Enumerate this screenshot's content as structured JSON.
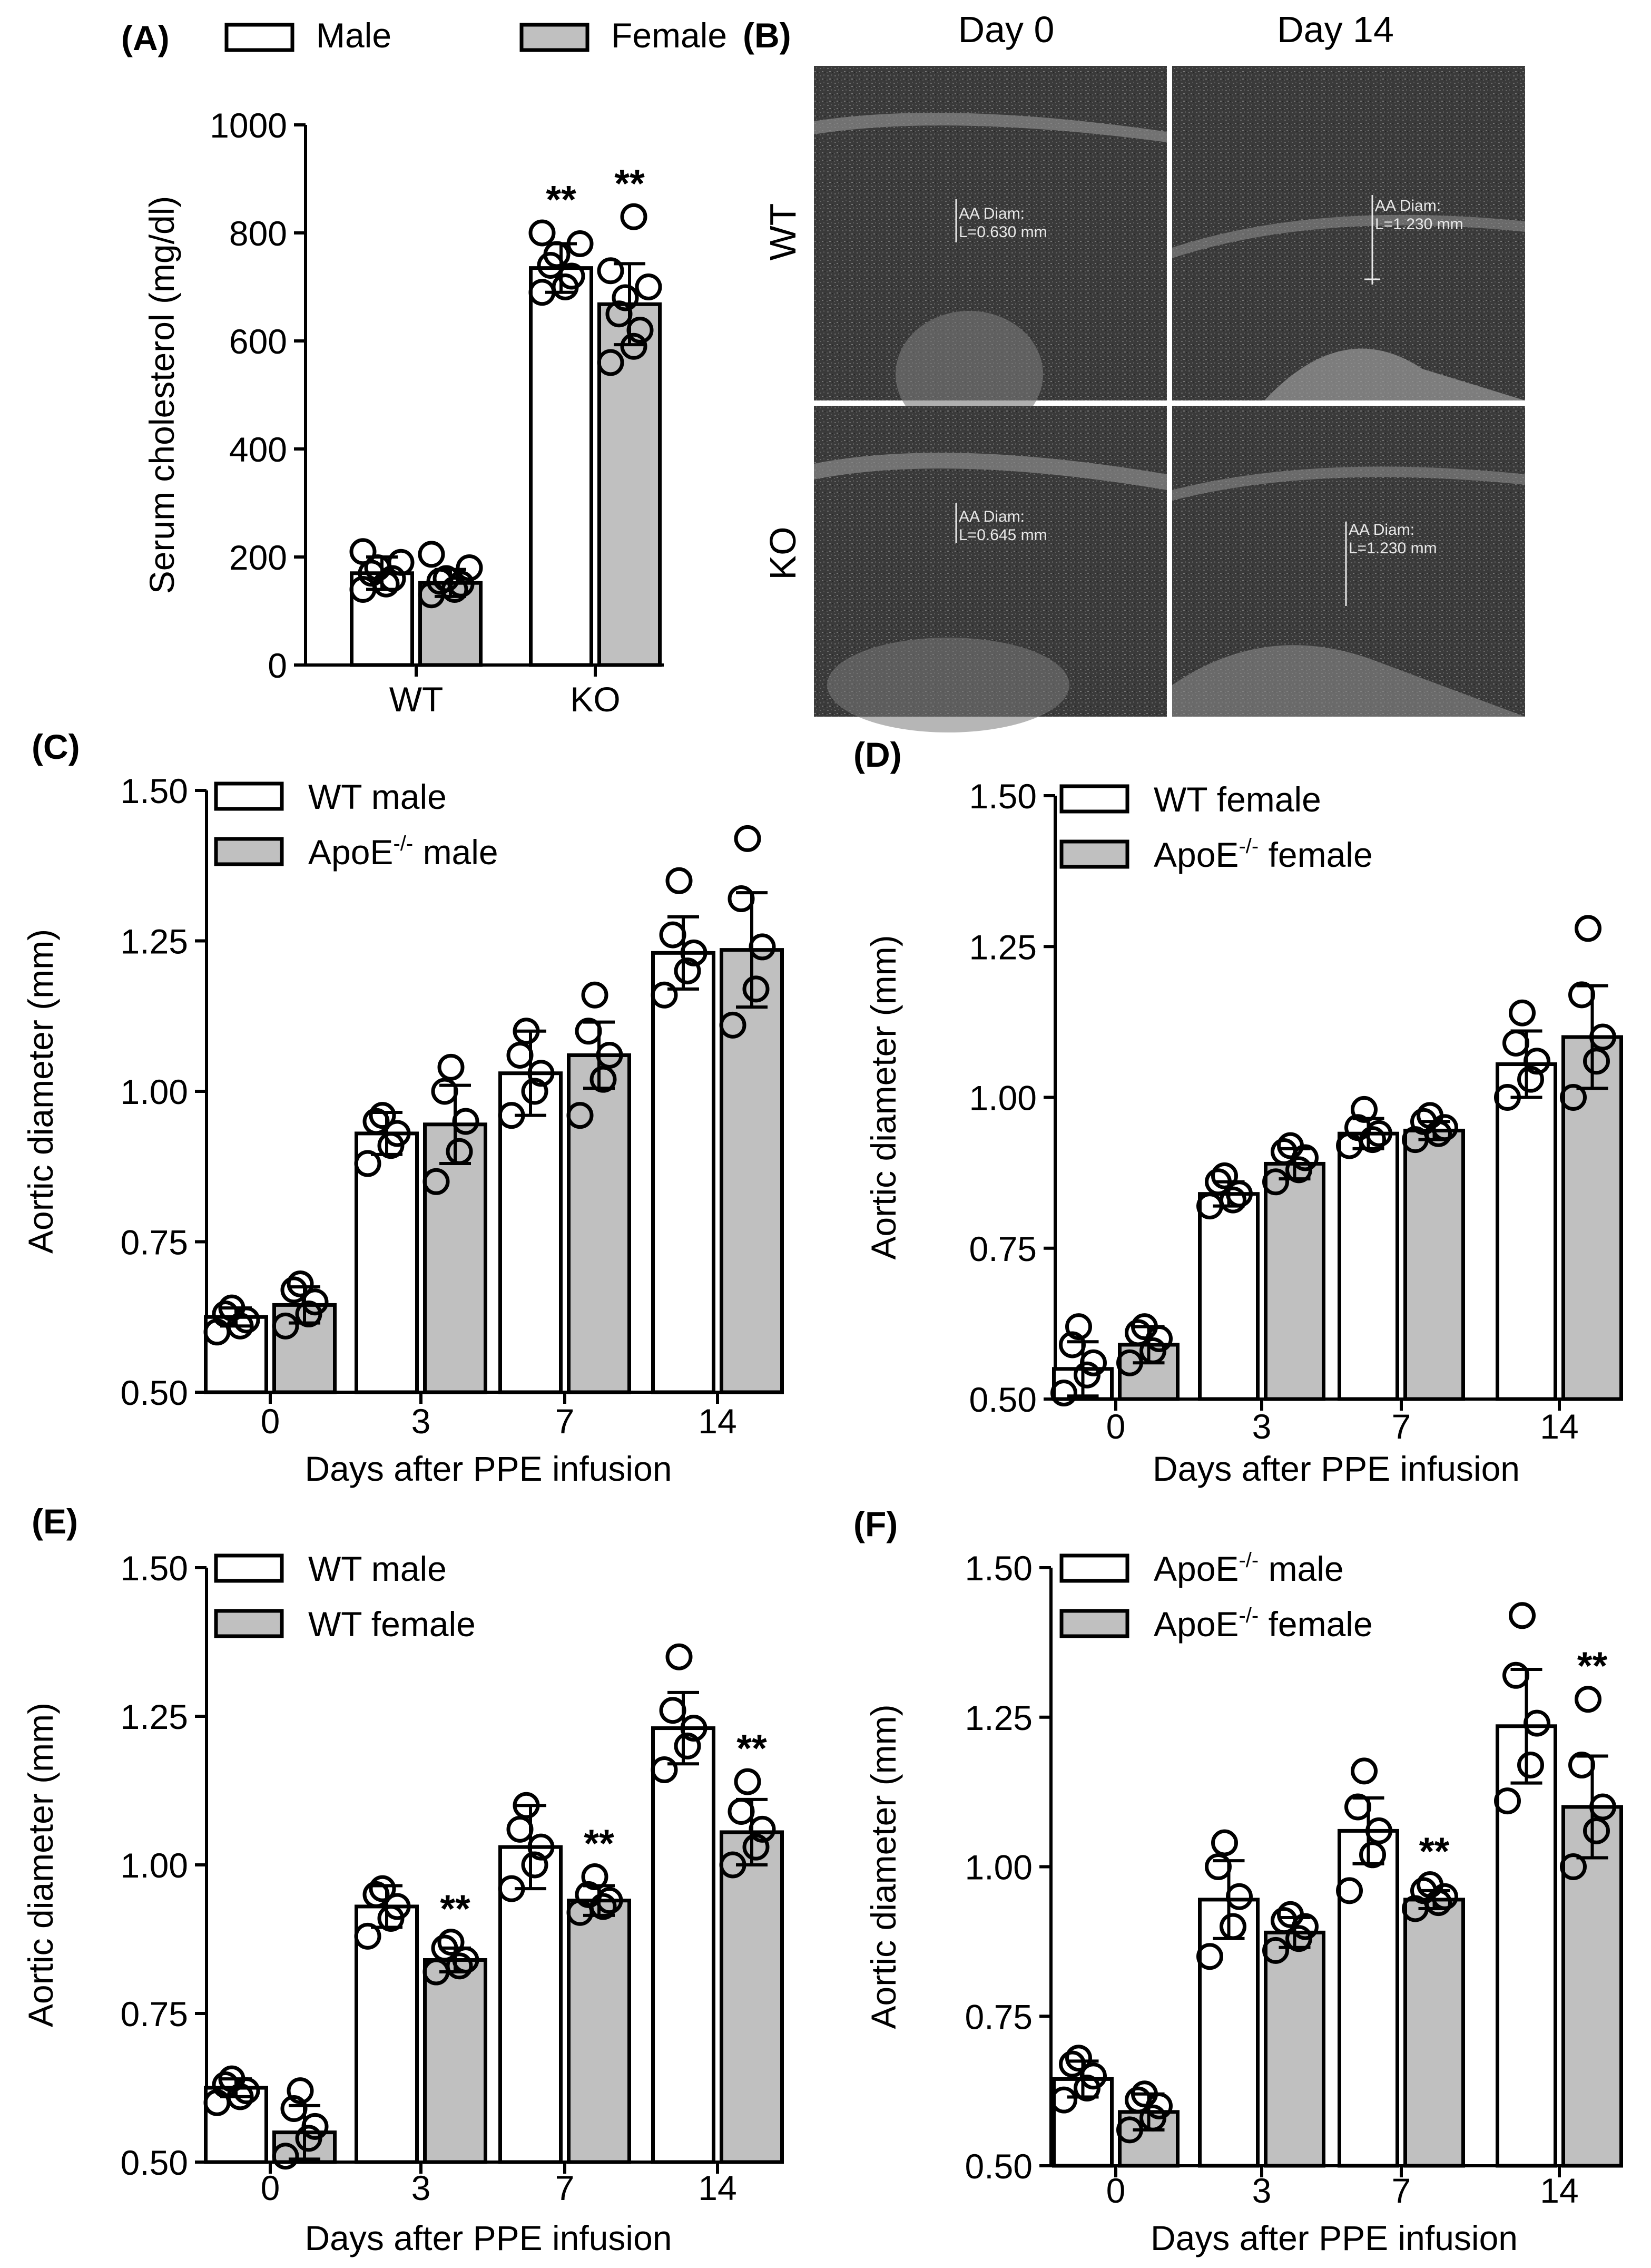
{
  "figure": {
    "colors": {
      "male_bar": "#ffffff",
      "female_bar": "#c0c0c0",
      "stroke": "#000000",
      "ultrasound_bg": "#3a3a3a",
      "ultrasound_text": "#e8e8e8"
    }
  },
  "ultrasound": {
    "panel_label": "(B)",
    "col_headers": [
      "Day 0",
      "Day 14"
    ],
    "row_labels": [
      "WT",
      "KO"
    ],
    "images": [
      {
        "name": "wt-day0",
        "measure_label": "AA Diam:",
        "measure_value": "L=0.630 mm"
      },
      {
        "name": "wt-day14",
        "measure_label": "AA Diam:",
        "measure_value": "L=1.230 mm"
      },
      {
        "name": "ko-day0",
        "measure_label": "AA Diam:",
        "measure_value": "L=0.645 mm"
      },
      {
        "name": "ko-day14",
        "measure_label": "AA Diam:",
        "measure_value": "L=1.230 mm"
      }
    ]
  },
  "chart_data": [
    {
      "id": "A",
      "panel_label": "(A)",
      "type": "bar",
      "ylabel": "Serum cholesterol (mg/dl)",
      "xlabel": "",
      "ylim": [
        0,
        1000
      ],
      "yticks": [
        "0",
        "200",
        "400",
        "600",
        "800",
        "1000"
      ],
      "categories": [
        "WT",
        "KO"
      ],
      "series": [
        {
          "name": "Male",
          "color": "#ffffff",
          "values": [
            170,
            735
          ],
          "errors": [
            30,
            45
          ],
          "points": [
            [
              140,
              150,
              160,
              170,
              180,
              190,
              210
            ],
            [
              690,
              700,
              720,
              740,
              760,
              780,
              800
            ]
          ],
          "sig": [
            "",
            "**"
          ]
        },
        {
          "name": "Female",
          "color": "#c0c0c0",
          "values": [
            152,
            668
          ],
          "errors": [
            25,
            75
          ],
          "points": [
            [
              130,
              140,
              150,
              155,
              160,
              180,
              205
            ],
            [
              560,
              590,
              620,
              650,
              680,
              700,
              730,
              830
            ]
          ],
          "sig": [
            "",
            "**"
          ]
        }
      ]
    },
    {
      "id": "C",
      "panel_label": "(C)",
      "type": "bar",
      "ylabel": "Aortic diameter (mm)",
      "xlabel": "Days after PPE infusion",
      "ylim": [
        0.5,
        1.5
      ],
      "yticks": [
        "0.50",
        "0.75",
        "1.00",
        "1.25",
        "1.50"
      ],
      "categories": [
        "0",
        "3",
        "7",
        "14"
      ],
      "series": [
        {
          "name": "WT male",
          "legend_name": "WT male",
          "color": "#ffffff",
          "values": [
            0.625,
            0.93,
            1.03,
            1.23
          ],
          "errors": [
            0.015,
            0.035,
            0.07,
            0.06
          ],
          "points": [
            [
              0.6,
              0.61,
              0.62,
              0.63,
              0.64
            ],
            [
              0.88,
              0.91,
              0.93,
              0.95,
              0.96
            ],
            [
              0.96,
              1.0,
              1.03,
              1.06,
              1.1
            ],
            [
              1.16,
              1.2,
              1.23,
              1.26,
              1.35
            ]
          ],
          "sig": [
            "",
            "",
            "",
            ""
          ]
        },
        {
          "name": "ApoE-/- male",
          "legend_name": "ApoE",
          "legend_sup": "-/-",
          "legend_suffix": " male",
          "color": "#c0c0c0",
          "values": [
            0.645,
            0.945,
            1.06,
            1.235
          ],
          "errors": [
            0.03,
            0.065,
            0.055,
            0.095
          ],
          "points": [
            [
              0.61,
              0.63,
              0.65,
              0.67,
              0.68
            ],
            [
              0.85,
              0.9,
              0.95,
              1.0,
              1.04
            ],
            [
              0.96,
              1.02,
              1.06,
              1.1,
              1.16
            ],
            [
              1.11,
              1.17,
              1.24,
              1.32,
              1.42
            ]
          ],
          "sig": [
            "",
            "",
            "",
            ""
          ]
        }
      ]
    },
    {
      "id": "D",
      "panel_label": "(D)",
      "type": "bar",
      "ylabel": "Aortic diameter (mm)",
      "xlabel": "Days after PPE infusion",
      "ylim": [
        0.5,
        1.5
      ],
      "yticks": [
        "0.50",
        "0.75",
        "1.00",
        "1.25",
        "1.50"
      ],
      "categories": [
        "0",
        "3",
        "7",
        "14"
      ],
      "series": [
        {
          "name": "WT female",
          "legend_name": "WT female",
          "color": "#ffffff",
          "values": [
            0.55,
            0.84,
            0.94,
            1.055
          ],
          "errors": [
            0.045,
            0.02,
            0.025,
            0.055
          ],
          "points": [
            [
              0.51,
              0.54,
              0.56,
              0.59,
              0.62
            ],
            [
              0.82,
              0.83,
              0.84,
              0.86,
              0.87
            ],
            [
              0.92,
              0.93,
              0.94,
              0.95,
              0.98
            ],
            [
              1.0,
              1.03,
              1.06,
              1.09,
              1.14
            ]
          ],
          "sig": [
            "",
            "",
            "",
            ""
          ]
        },
        {
          "name": "ApoE-/- female",
          "legend_name": "ApoE",
          "legend_sup": "-/-",
          "legend_suffix": " female",
          "color": "#c0c0c0",
          "values": [
            0.59,
            0.89,
            0.945,
            1.1
          ],
          "errors": [
            0.03,
            0.025,
            0.015,
            0.085
          ],
          "points": [
            [
              0.56,
              0.58,
              0.6,
              0.61,
              0.62
            ],
            [
              0.86,
              0.88,
              0.9,
              0.91,
              0.92
            ],
            [
              0.93,
              0.94,
              0.95,
              0.96,
              0.97
            ],
            [
              1.0,
              1.06,
              1.1,
              1.17,
              1.28
            ]
          ],
          "sig": [
            "",
            "",
            "",
            ""
          ]
        }
      ]
    },
    {
      "id": "E",
      "panel_label": "(E)",
      "type": "bar",
      "ylabel": "Aortic diameter (mm)",
      "xlabel": "Days after PPE infusion",
      "ylim": [
        0.5,
        1.5
      ],
      "yticks": [
        "0.50",
        "0.75",
        "1.00",
        "1.25",
        "1.50"
      ],
      "categories": [
        "0",
        "3",
        "7",
        "14"
      ],
      "series": [
        {
          "name": "WT male",
          "legend_name": "WT male",
          "color": "#ffffff",
          "values": [
            0.625,
            0.93,
            1.03,
            1.23
          ],
          "errors": [
            0.015,
            0.035,
            0.07,
            0.06
          ],
          "points": [
            [
              0.6,
              0.61,
              0.62,
              0.63,
              0.64
            ],
            [
              0.88,
              0.91,
              0.93,
              0.95,
              0.96
            ],
            [
              0.96,
              1.0,
              1.03,
              1.06,
              1.1
            ],
            [
              1.16,
              1.2,
              1.23,
              1.26,
              1.35
            ]
          ],
          "sig": [
            "",
            "",
            "",
            ""
          ]
        },
        {
          "name": "WT female",
          "legend_name": "WT female",
          "color": "#c0c0c0",
          "values": [
            0.55,
            0.84,
            0.94,
            1.055
          ],
          "errors": [
            0.045,
            0.02,
            0.025,
            0.055
          ],
          "points": [
            [
              0.51,
              0.54,
              0.56,
              0.59,
              0.62
            ],
            [
              0.82,
              0.83,
              0.84,
              0.86,
              0.87
            ],
            [
              0.92,
              0.93,
              0.94,
              0.95,
              0.98
            ],
            [
              1.0,
              1.03,
              1.06,
              1.09,
              1.14
            ]
          ],
          "sig": [
            "",
            "**",
            "**",
            "**"
          ]
        }
      ]
    },
    {
      "id": "F",
      "panel_label": "(F)",
      "type": "bar",
      "ylabel": "Aortic diameter (mm)",
      "xlabel": "Days after PPE infusion",
      "ylim": [
        0.5,
        1.5
      ],
      "yticks": [
        "0.50",
        "0.75",
        "1.00",
        "1.25",
        "1.50"
      ],
      "categories": [
        "0",
        "3",
        "7",
        "14"
      ],
      "series": [
        {
          "name": "ApoE-/- male",
          "legend_name": "ApoE",
          "legend_sup": "-/-",
          "legend_suffix": " male",
          "color": "#ffffff",
          "values": [
            0.645,
            0.945,
            1.06,
            1.235
          ],
          "errors": [
            0.03,
            0.065,
            0.055,
            0.095
          ],
          "points": [
            [
              0.61,
              0.63,
              0.65,
              0.67,
              0.68
            ],
            [
              0.85,
              0.9,
              0.95,
              1.0,
              1.04
            ],
            [
              0.96,
              1.02,
              1.06,
              1.1,
              1.16
            ],
            [
              1.11,
              1.17,
              1.24,
              1.32,
              1.42
            ]
          ],
          "sig": [
            "",
            "",
            "",
            ""
          ]
        },
        {
          "name": "ApoE-/- female",
          "legend_name": "ApoE",
          "legend_sup": "-/-",
          "legend_suffix": " female",
          "color": "#c0c0c0",
          "values": [
            0.59,
            0.89,
            0.945,
            1.1
          ],
          "errors": [
            0.03,
            0.025,
            0.015,
            0.085
          ],
          "points": [
            [
              0.56,
              0.58,
              0.6,
              0.61,
              0.62
            ],
            [
              0.86,
              0.88,
              0.9,
              0.91,
              0.92
            ],
            [
              0.93,
              0.94,
              0.95,
              0.96,
              0.97
            ],
            [
              1.0,
              1.06,
              1.1,
              1.17,
              1.28
            ]
          ],
          "sig": [
            "",
            "",
            "**",
            "**"
          ]
        }
      ]
    }
  ]
}
